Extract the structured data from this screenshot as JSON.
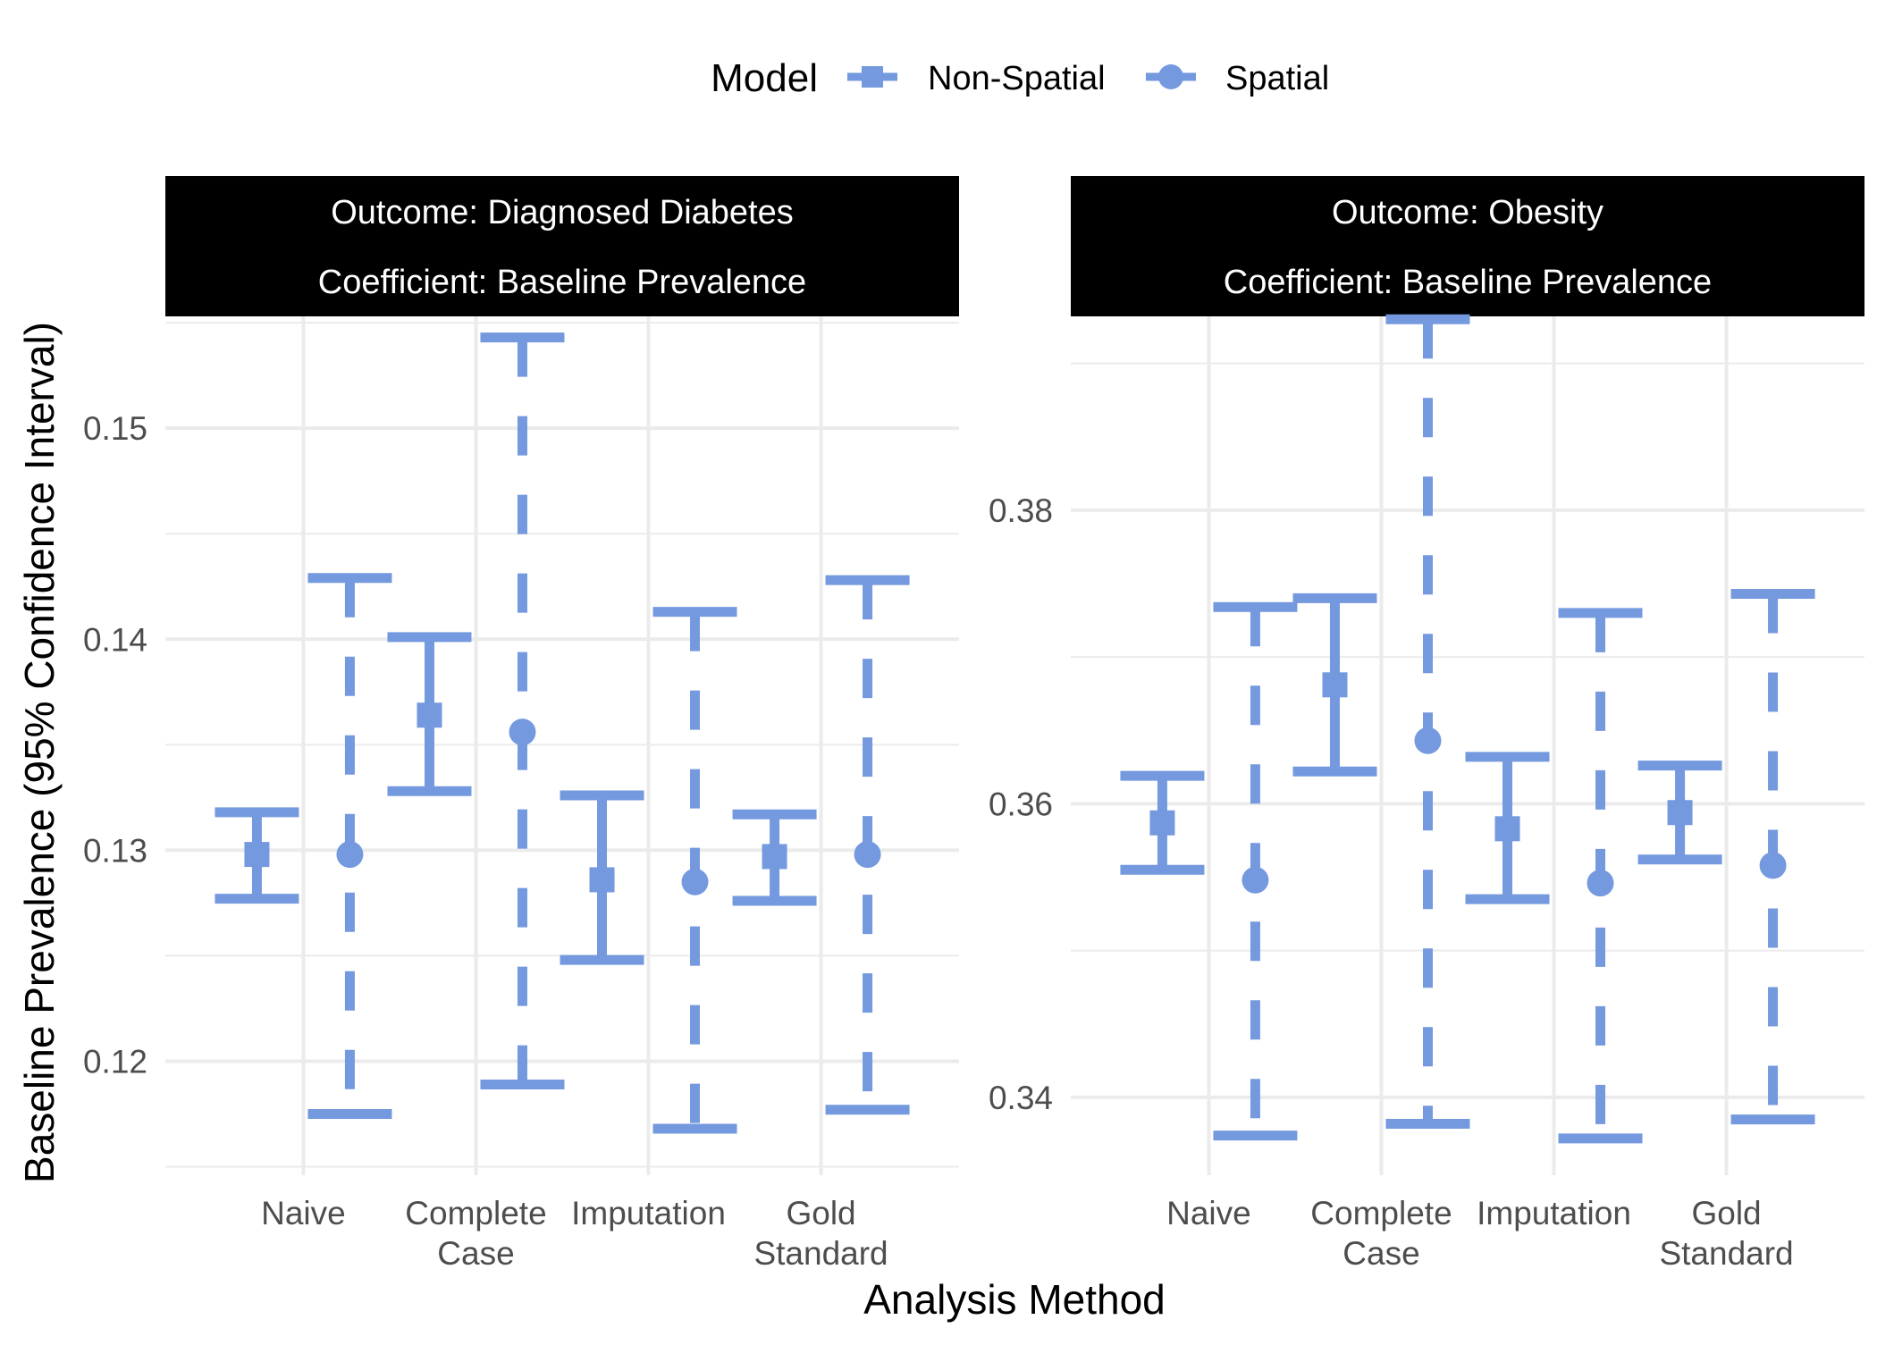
{
  "legend": {
    "title": "Model",
    "entries": [
      {
        "label": "Non-Spatial",
        "shape": "square"
      },
      {
        "label": "Spatial",
        "shape": "circle"
      }
    ]
  },
  "x_axis_title": "Analysis Method",
  "y_axis_title": "Baseline Prevalence (95% Confidence Interval)",
  "colors": {
    "series": "#7499DE",
    "strip_bg": "#000000",
    "strip_text": "#ffffff",
    "grid": "#EBEBEB",
    "axis_text": "#4D4D4D"
  },
  "chart_data": [
    {
      "type": "errorbar",
      "facet_label_lines": [
        "Outcome: Diagnosed Diabetes",
        "Coefficient: Baseline Prevalence"
      ],
      "categories": [
        [
          "Naive"
        ],
        [
          "Complete",
          "Case"
        ],
        [
          "Imputation"
        ],
        [
          "Gold",
          "Standard"
        ]
      ],
      "ylim": [
        0.1146,
        0.1553
      ],
      "yticks": [
        0.12,
        0.13,
        0.14,
        0.15
      ],
      "ytick_labels": [
        "0.12",
        "0.13",
        "0.14",
        "0.15"
      ],
      "series": [
        {
          "name": "Non-Spatial",
          "shape": "square",
          "line": "solid",
          "estimate": [
            0.1298,
            0.1364,
            0.1286,
            0.1297
          ],
          "lower": [
            0.1277,
            0.1328,
            0.1248,
            0.1276
          ],
          "upper": [
            0.1318,
            0.1401,
            0.1326,
            0.1317
          ]
        },
        {
          "name": "Spatial",
          "shape": "circle",
          "line": "dashed",
          "estimate": [
            0.1298,
            0.1356,
            0.1285,
            0.1298
          ],
          "lower": [
            0.1175,
            0.1189,
            0.1168,
            0.1177
          ],
          "upper": [
            0.1429,
            0.1543,
            0.1413,
            0.1428
          ]
        }
      ]
    },
    {
      "type": "errorbar",
      "facet_label_lines": [
        "Outcome: Obesity",
        "Coefficient: Baseline Prevalence"
      ],
      "categories": [
        [
          "Naive"
        ],
        [
          "Complete",
          "Case"
        ],
        [
          "Imputation"
        ],
        [
          "Gold",
          "Standard"
        ]
      ],
      "ylim": [
        0.3347,
        0.3932
      ],
      "yticks": [
        0.34,
        0.36,
        0.38
      ],
      "ytick_labels": [
        "0.34",
        "0.36",
        "0.38"
      ],
      "series": [
        {
          "name": "Non-Spatial",
          "shape": "square",
          "line": "solid",
          "estimate": [
            0.3587,
            0.3681,
            0.3583,
            0.3594
          ],
          "lower": [
            0.3555,
            0.3622,
            0.3535,
            0.3562
          ],
          "upper": [
            0.3619,
            0.374,
            0.3632,
            0.3626
          ]
        },
        {
          "name": "Spatial",
          "shape": "circle",
          "line": "dashed",
          "estimate": [
            0.3548,
            0.3643,
            0.3546,
            0.3558
          ],
          "lower": [
            0.3374,
            0.3382,
            0.3372,
            0.3385
          ],
          "upper": [
            0.3734,
            0.393,
            0.373,
            0.3743
          ]
        }
      ]
    }
  ]
}
